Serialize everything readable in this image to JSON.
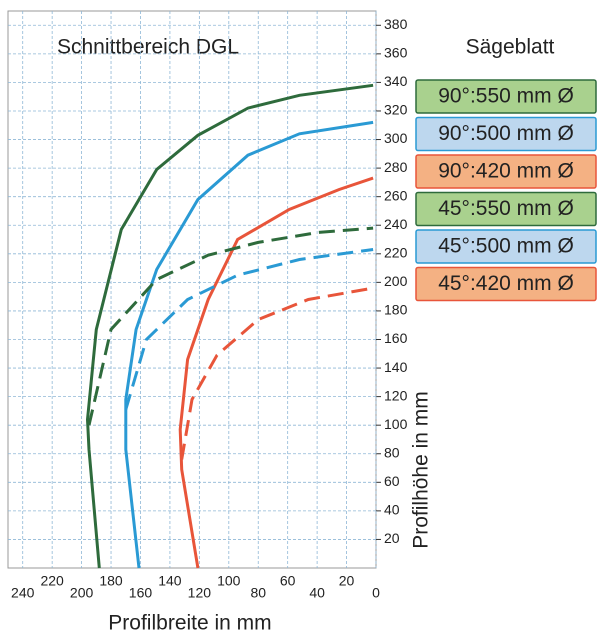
{
  "chart_data": {
    "type": "line",
    "title": "Schnittbereich DGL",
    "legend_title": "Sägeblatt",
    "x_label": "Profilbreite in mm",
    "y_label": "Profilhöhe in mm",
    "xlim": [
      0,
      250
    ],
    "x_inverted": true,
    "xticks": [
      0,
      20,
      40,
      60,
      80,
      100,
      120,
      140,
      160,
      180,
      200,
      220,
      240
    ],
    "ylim": [
      0,
      390
    ],
    "yticks": [
      20,
      40,
      60,
      80,
      100,
      120,
      140,
      160,
      180,
      200,
      220,
      240,
      260,
      280,
      300,
      320,
      340,
      360,
      380
    ],
    "grid": true,
    "legend_position": "right",
    "series": [
      {
        "name": "90°:550 mm Ø",
        "color": "#2e6b3c",
        "fill": "#a9d18e",
        "dash": false,
        "x": [
          188,
          195,
          196,
          190,
          173,
          149,
          121,
          87,
          52,
          2
        ],
        "y": [
          0,
          83,
          104,
          167,
          237,
          279,
          303,
          322,
          331,
          338
        ]
      },
      {
        "name": "90°:500 mm Ø",
        "color": "#2a9ad4",
        "fill": "#bdd7ee",
        "dash": false,
        "x": [
          161,
          170,
          170,
          163,
          149,
          121,
          87,
          52,
          2
        ],
        "y": [
          0,
          83,
          118,
          167,
          209,
          258,
          289,
          304,
          312
        ]
      },
      {
        "name": "90°:420 mm Ø",
        "color": "#e8553a",
        "fill": "#f4b183",
        "dash": false,
        "x": [
          121,
          132,
          133,
          128,
          114,
          94,
          59,
          25,
          2
        ],
        "y": [
          0,
          69,
          97,
          146,
          188,
          230,
          251,
          265,
          273
        ]
      },
      {
        "name": "45°:550 mm Ø",
        "color": "#2e6b3c",
        "fill": "#a9d18e",
        "dash": true,
        "x": [
          195,
          180,
          149,
          114,
          80,
          39,
          2
        ],
        "y": [
          100,
          167,
          202,
          219,
          228,
          235,
          238
        ]
      },
      {
        "name": "45°:500 mm Ø",
        "color": "#2a9ad4",
        "fill": "#bdd7ee",
        "dash": true,
        "x": [
          170,
          156,
          128,
          94,
          52,
          2
        ],
        "y": [
          111,
          160,
          188,
          205,
          216,
          223
        ]
      },
      {
        "name": "45°:420 mm Ø",
        "color": "#e8553a",
        "fill": "#f4b183",
        "dash": true,
        "x": [
          132,
          125,
          108,
          80,
          46,
          2
        ],
        "y": [
          76,
          118,
          149,
          174,
          188,
          196
        ]
      }
    ]
  }
}
